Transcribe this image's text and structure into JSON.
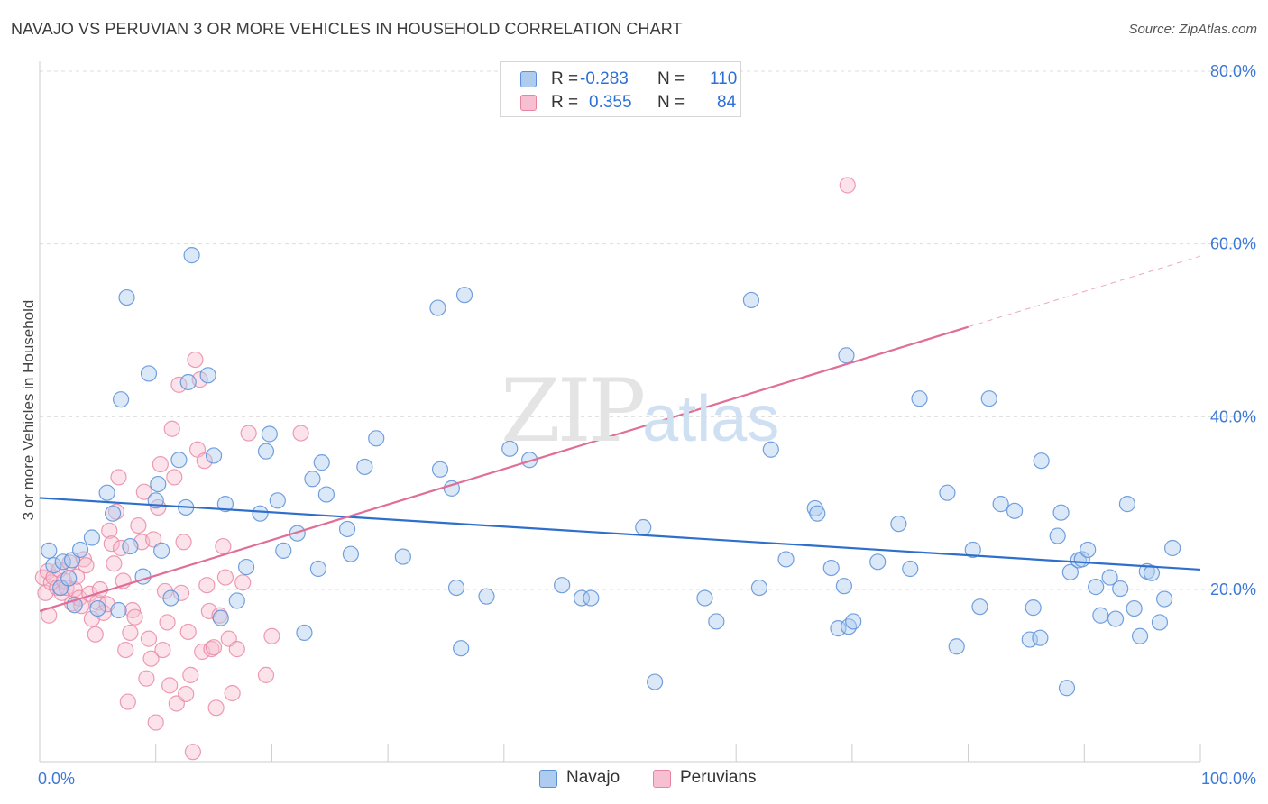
{
  "header": {
    "title": "NAVAJO VS PERUVIAN 3 OR MORE VEHICLES IN HOUSEHOLD CORRELATION CHART",
    "source": "Source: ZipAtlas.com"
  },
  "legend": {
    "rows": [
      {
        "r_label": "R =",
        "r_value": "-0.283",
        "n_label": "N =",
        "n_value": "110"
      },
      {
        "r_label": "R =",
        "r_value": "0.355",
        "n_label": "N =",
        "n_value": "84"
      }
    ]
  },
  "watermark": {
    "zip": "ZIP",
    "atlas": "atlas"
  },
  "colors": {
    "navajo_fill": "#aecbf0",
    "navajo_stroke": "#5b8fd8",
    "navajo_line": "#2f6fcc",
    "peruvian_fill": "#f7bfd2",
    "peruvian_stroke": "#e8849f",
    "peruvian_line": "#e06e96",
    "tick_label": "#3c78d8",
    "grid": "#dddddd"
  },
  "chart_data": {
    "type": "scatter",
    "title": "NAVAJO VS PERUVIAN 3 OR MORE VEHICLES IN HOUSEHOLD CORRELATION CHART",
    "xlabel": "",
    "ylabel": "3 or more Vehicles in Household",
    "xlim": [
      0,
      100
    ],
    "ylim": [
      0,
      82
    ],
    "x_tick_labels": [
      "0.0%",
      "100.0%"
    ],
    "y_ticks": [
      20,
      40,
      60,
      80
    ],
    "y_tick_labels": [
      "20.0%",
      "40.0%",
      "60.0%",
      "80.0%"
    ],
    "grid": true,
    "legend_placement": "top-center",
    "series": [
      {
        "name": "Navajo",
        "r": -0.283,
        "n": 110,
        "trend": {
          "x": [
            0,
            100
          ],
          "y": [
            30.6,
            22.3
          ]
        },
        "points": [
          [
            0.8,
            24.5
          ],
          [
            1.2,
            22.8
          ],
          [
            1.8,
            20.2
          ],
          [
            2.0,
            23.2
          ],
          [
            2.5,
            21.3
          ],
          [
            2.8,
            23.4
          ],
          [
            3.0,
            18.2
          ],
          [
            3.5,
            24.6
          ],
          [
            4.5,
            26.0
          ],
          [
            5.0,
            17.8
          ],
          [
            5.8,
            31.2
          ],
          [
            6.3,
            28.8
          ],
          [
            6.8,
            17.6
          ],
          [
            7.0,
            42.0
          ],
          [
            7.5,
            53.8
          ],
          [
            7.8,
            25.0
          ],
          [
            8.9,
            21.5
          ],
          [
            9.4,
            45.0
          ],
          [
            10.0,
            30.3
          ],
          [
            10.2,
            32.2
          ],
          [
            10.5,
            24.5
          ],
          [
            11.3,
            19.0
          ],
          [
            12.0,
            35.0
          ],
          [
            12.6,
            29.5
          ],
          [
            12.8,
            44.0
          ],
          [
            13.1,
            58.7
          ],
          [
            14.5,
            44.8
          ],
          [
            15.0,
            35.5
          ],
          [
            15.6,
            16.7
          ],
          [
            16.0,
            29.9
          ],
          [
            17.0,
            18.7
          ],
          [
            17.8,
            22.6
          ],
          [
            19.0,
            28.8
          ],
          [
            19.5,
            36.0
          ],
          [
            19.8,
            38.0
          ],
          [
            20.5,
            30.3
          ],
          [
            21.0,
            24.5
          ],
          [
            22.2,
            26.5
          ],
          [
            22.8,
            15.0
          ],
          [
            23.5,
            32.8
          ],
          [
            24.0,
            22.4
          ],
          [
            24.3,
            34.7
          ],
          [
            24.7,
            31.0
          ],
          [
            26.5,
            27.0
          ],
          [
            26.8,
            24.1
          ],
          [
            28.0,
            34.2
          ],
          [
            29.0,
            37.5
          ],
          [
            31.3,
            23.8
          ],
          [
            34.3,
            52.6
          ],
          [
            34.5,
            33.9
          ],
          [
            35.5,
            31.7
          ],
          [
            35.9,
            20.2
          ],
          [
            36.3,
            13.2
          ],
          [
            36.6,
            54.1
          ],
          [
            38.5,
            19.2
          ],
          [
            40.5,
            36.3
          ],
          [
            42.2,
            35.0
          ],
          [
            45.0,
            20.5
          ],
          [
            46.7,
            19.0
          ],
          [
            47.5,
            19.0
          ],
          [
            52.0,
            27.2
          ],
          [
            53.0,
            9.3
          ],
          [
            57.3,
            19.0
          ],
          [
            58.3,
            16.3
          ],
          [
            61.3,
            53.5
          ],
          [
            62.0,
            20.2
          ],
          [
            63.0,
            36.2
          ],
          [
            64.3,
            23.5
          ],
          [
            66.8,
            29.4
          ],
          [
            67.0,
            28.8
          ],
          [
            68.2,
            22.5
          ],
          [
            68.8,
            15.5
          ],
          [
            69.3,
            20.4
          ],
          [
            69.5,
            47.1
          ],
          [
            69.7,
            15.7
          ],
          [
            70.1,
            16.3
          ],
          [
            72.2,
            23.2
          ],
          [
            74.0,
            27.6
          ],
          [
            75.0,
            22.4
          ],
          [
            75.8,
            42.1
          ],
          [
            78.2,
            31.2
          ],
          [
            79.0,
            13.4
          ],
          [
            80.4,
            24.6
          ],
          [
            81.0,
            18.0
          ],
          [
            81.8,
            42.1
          ],
          [
            82.8,
            29.9
          ],
          [
            84.0,
            29.1
          ],
          [
            85.3,
            14.2
          ],
          [
            85.6,
            17.9
          ],
          [
            86.2,
            14.4
          ],
          [
            86.3,
            34.9
          ],
          [
            87.7,
            26.2
          ],
          [
            88.0,
            28.9
          ],
          [
            88.5,
            8.6
          ],
          [
            88.8,
            22.0
          ],
          [
            89.5,
            23.4
          ],
          [
            89.8,
            23.5
          ],
          [
            90.3,
            24.6
          ],
          [
            91.0,
            20.3
          ],
          [
            91.4,
            17.0
          ],
          [
            92.2,
            21.4
          ],
          [
            92.7,
            16.6
          ],
          [
            93.1,
            20.1
          ],
          [
            93.7,
            29.9
          ],
          [
            94.3,
            17.8
          ],
          [
            94.8,
            14.6
          ],
          [
            95.4,
            22.1
          ],
          [
            95.8,
            21.9
          ],
          [
            96.5,
            16.2
          ],
          [
            96.9,
            18.9
          ],
          [
            97.6,
            24.8
          ]
        ]
      },
      {
        "name": "Peruvians",
        "r": 0.355,
        "n": 84,
        "trend": {
          "x": [
            0,
            80
          ],
          "y": [
            17.5,
            50.4
          ]
        },
        "trend_dashed": {
          "x": [
            80,
            100
          ],
          "y": [
            50.4,
            58.6
          ]
        },
        "points": [
          [
            0.3,
            21.4
          ],
          [
            0.5,
            19.6
          ],
          [
            0.7,
            22.1
          ],
          [
            0.8,
            17.0
          ],
          [
            1.0,
            20.8
          ],
          [
            1.2,
            21.4
          ],
          [
            1.5,
            20.2
          ],
          [
            1.7,
            22.3
          ],
          [
            1.9,
            19.6
          ],
          [
            2.1,
            21.0
          ],
          [
            2.3,
            20.2
          ],
          [
            2.6,
            23.1
          ],
          [
            2.8,
            18.4
          ],
          [
            3.0,
            20.0
          ],
          [
            3.2,
            21.5
          ],
          [
            3.4,
            19.0
          ],
          [
            3.6,
            18.1
          ],
          [
            3.8,
            23.5
          ],
          [
            4.0,
            22.8
          ],
          [
            4.3,
            19.5
          ],
          [
            4.5,
            16.6
          ],
          [
            4.8,
            14.8
          ],
          [
            5.0,
            18.5
          ],
          [
            5.2,
            20.0
          ],
          [
            5.5,
            17.3
          ],
          [
            5.8,
            18.3
          ],
          [
            6.0,
            26.8
          ],
          [
            6.2,
            25.3
          ],
          [
            6.4,
            23.0
          ],
          [
            6.6,
            29.0
          ],
          [
            6.8,
            33.0
          ],
          [
            7.0,
            24.8
          ],
          [
            7.2,
            21.0
          ],
          [
            7.4,
            13.0
          ],
          [
            7.6,
            7.0
          ],
          [
            7.8,
            15.0
          ],
          [
            8.0,
            17.6
          ],
          [
            8.2,
            16.8
          ],
          [
            8.5,
            27.4
          ],
          [
            8.8,
            25.5
          ],
          [
            9.0,
            31.3
          ],
          [
            9.2,
            9.7
          ],
          [
            9.4,
            14.3
          ],
          [
            9.6,
            12.0
          ],
          [
            9.8,
            25.8
          ],
          [
            10.0,
            4.6
          ],
          [
            10.2,
            29.5
          ],
          [
            10.4,
            34.5
          ],
          [
            10.6,
            13.0
          ],
          [
            10.8,
            19.8
          ],
          [
            11.0,
            16.2
          ],
          [
            11.2,
            8.9
          ],
          [
            11.4,
            38.6
          ],
          [
            11.6,
            33.0
          ],
          [
            11.8,
            6.8
          ],
          [
            12.0,
            43.7
          ],
          [
            12.2,
            19.6
          ],
          [
            12.4,
            25.5
          ],
          [
            12.6,
            7.9
          ],
          [
            12.8,
            15.1
          ],
          [
            13.0,
            10.1
          ],
          [
            13.2,
            1.2
          ],
          [
            13.4,
            46.6
          ],
          [
            13.6,
            36.2
          ],
          [
            13.8,
            44.3
          ],
          [
            14.0,
            12.8
          ],
          [
            14.2,
            34.9
          ],
          [
            14.4,
            20.5
          ],
          [
            14.6,
            17.5
          ],
          [
            14.8,
            13.1
          ],
          [
            15.0,
            13.3
          ],
          [
            15.2,
            6.3
          ],
          [
            15.5,
            17.0
          ],
          [
            15.8,
            25.0
          ],
          [
            16.0,
            21.4
          ],
          [
            16.3,
            14.3
          ],
          [
            16.6,
            8.0
          ],
          [
            17.0,
            13.1
          ],
          [
            17.5,
            20.8
          ],
          [
            18.0,
            38.1
          ],
          [
            19.5,
            10.1
          ],
          [
            20.0,
            14.6
          ],
          [
            22.5,
            38.1
          ],
          [
            69.6,
            66.8
          ]
        ]
      }
    ]
  }
}
